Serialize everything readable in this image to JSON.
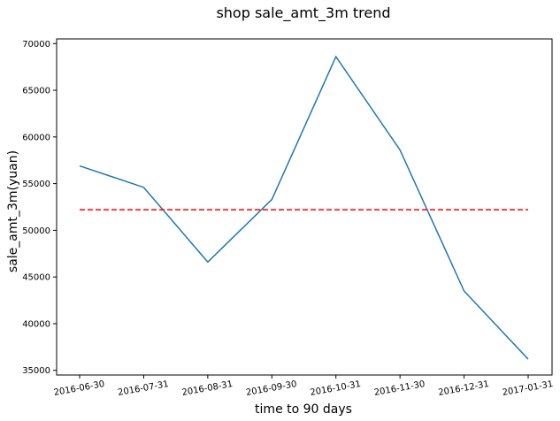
{
  "chart_data": {
    "type": "line",
    "title": "shop sale_amt_3m trend",
    "xlabel": "time to 90 days",
    "ylabel": "sale_amt_3m(yuan)",
    "categories": [
      "2016-06-30",
      "2016-07-31",
      "2016-08-31",
      "2016-09-30",
      "2016-10-31",
      "2016-11-30",
      "2016-12-31",
      "2017-01-31"
    ],
    "series": [
      {
        "values": [
          56900,
          54600,
          46600,
          53300,
          68600,
          58600,
          43500,
          36200
        ],
        "color": "#1f77b4",
        "style": "solid"
      },
      {
        "values": [
          52200,
          52200,
          52200,
          52200,
          52200,
          52200,
          52200,
          52200
        ],
        "color": "#ff0000",
        "style": "dashed"
      }
    ],
    "yticks": [
      35000,
      40000,
      45000,
      50000,
      55000,
      60000,
      65000,
      70000
    ],
    "ylim": [
      34500,
      70500
    ],
    "grid": false,
    "legend": "none"
  }
}
